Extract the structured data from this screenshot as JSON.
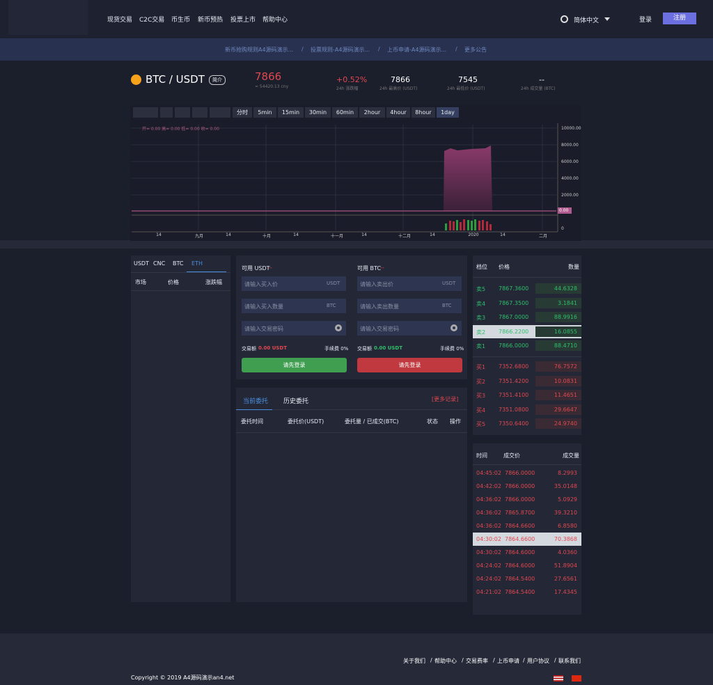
{
  "nav": {
    "items": [
      "现货交易",
      "C2C交易",
      "币生币",
      "新币预热",
      "投票上市",
      "帮助中心"
    ],
    "lang": "简体中文",
    "login": "登录",
    "register": "注册"
  },
  "notices": [
    "新币抢购规则A4源码演示...",
    "投票规则-A4源码演示...",
    "上币申请-A4源码演示...",
    "更多公告"
  ],
  "ticker": {
    "pair": "BTC / USDT",
    "badge": "简介",
    "price": "7866",
    "price_sub": "≈ 54420.13 cny",
    "stats": [
      {
        "value": "+0.52%",
        "label": "24h 涨跌幅"
      },
      {
        "value": "7866",
        "label": "24h 最高价 (USDT)"
      },
      {
        "value": "7545",
        "label": "24h 最低价 (USDT)"
      },
      {
        "value": "--",
        "label": "24h 成交量 (BTC)"
      }
    ]
  },
  "kline": {
    "intervals": [
      "分时",
      "5min",
      "15min",
      "30min",
      "60min",
      "2hour",
      "4hour",
      "8hour",
      "1day"
    ],
    "legend": "开= 0.00 高= 0.00 低= 0.00 收= 0.00",
    "yaxis": [
      "10000.00",
      "8000.00",
      "6000.00",
      "4000.00",
      "2000.00"
    ],
    "current": "0.00",
    "volume_axis": "0",
    "xaxis": [
      "14",
      "九月",
      "14",
      "十月",
      "14",
      "十一月",
      "14",
      "十二月",
      "14",
      "2020",
      "14",
      "二月"
    ]
  },
  "market": {
    "tabs": [
      "USDT",
      "CNC",
      "BTC",
      "ETH"
    ],
    "headers": [
      "市场",
      "价格",
      "涨跌幅"
    ]
  },
  "trade": {
    "buy": {
      "available": "可用 USDT",
      "available_value": "--",
      "inputs": [
        {
          "placeholder": "请输入买入价",
          "unit": "USDT"
        },
        {
          "placeholder": "请输入买入数量",
          "unit": "BTC"
        },
        {
          "placeholder": "请输入交易密码",
          "unit": ""
        }
      ],
      "amount_label": "交易额",
      "amount": "0.00 USDT",
      "fee": "手续费 0%",
      "button": "请先登录"
    },
    "sell": {
      "available": "可用 BTC",
      "available_value": "--",
      "inputs": [
        {
          "placeholder": "请输入卖出价",
          "unit": "USDT"
        },
        {
          "placeholder": "请输入卖出数量",
          "unit": "BTC"
        },
        {
          "placeholder": "请输入交易密码",
          "unit": ""
        }
      ],
      "amount_label": "交易额",
      "amount": "0.00 USDT",
      "fee": "手续费 0%",
      "button": "请先登录"
    }
  },
  "orders": {
    "tabs": [
      "当前委托",
      "历史委托"
    ],
    "more": "[更多记录]",
    "headers": [
      "委托时间",
      "委托价(USDT)",
      "委托量 / 已成交(BTC)",
      "状态",
      "操作"
    ]
  },
  "orderbook": {
    "headers": [
      "档位",
      "价格",
      "数量"
    ],
    "sells": [
      [
        "卖5",
        "7867.3600",
        "44.6328"
      ],
      [
        "卖4",
        "7867.3500",
        "3.1841"
      ],
      [
        "卖3",
        "7867.0000",
        "88.9916"
      ],
      [
        "卖2",
        "7866.2200",
        "16.0855"
      ],
      [
        "卖1",
        "7866.0000",
        "88.4710"
      ]
    ],
    "buys": [
      [
        "买1",
        "7352.6800",
        "76.7572"
      ],
      [
        "买2",
        "7351.4200",
        "10.0831"
      ],
      [
        "买3",
        "7351.4100",
        "11.4651"
      ],
      [
        "买4",
        "7351.0800",
        "29.6647"
      ],
      [
        "买5",
        "7350.6400",
        "24.9740"
      ]
    ]
  },
  "trades": {
    "headers": [
      "时间",
      "成交价",
      "成交量"
    ],
    "rows": [
      [
        "04:45:02",
        "7866.0000",
        "8.2993"
      ],
      [
        "04:42:02",
        "7866.0000",
        "35.0148"
      ],
      [
        "04:36:02",
        "7866.0000",
        "5.0929"
      ],
      [
        "04:36:02",
        "7865.8700",
        "39.3210"
      ],
      [
        "04:36:02",
        "7864.6600",
        "6.8580"
      ],
      [
        "04:30:02",
        "7864.6600",
        "70.3868"
      ],
      [
        "04:30:02",
        "7864.6000",
        "4.0360"
      ],
      [
        "04:24:02",
        "7864.6000",
        "51.8904"
      ],
      [
        "04:24:02",
        "7864.5400",
        "27.6561"
      ],
      [
        "04:21:02",
        "7864.5400",
        "17.4345"
      ]
    ]
  },
  "footer": {
    "links": [
      "关于我们",
      "帮助中心",
      "交易费率",
      "上币申请",
      "用户协议",
      "联系我们"
    ],
    "copyright": "Copyright © 2019 A4源码演示an4.net"
  }
}
